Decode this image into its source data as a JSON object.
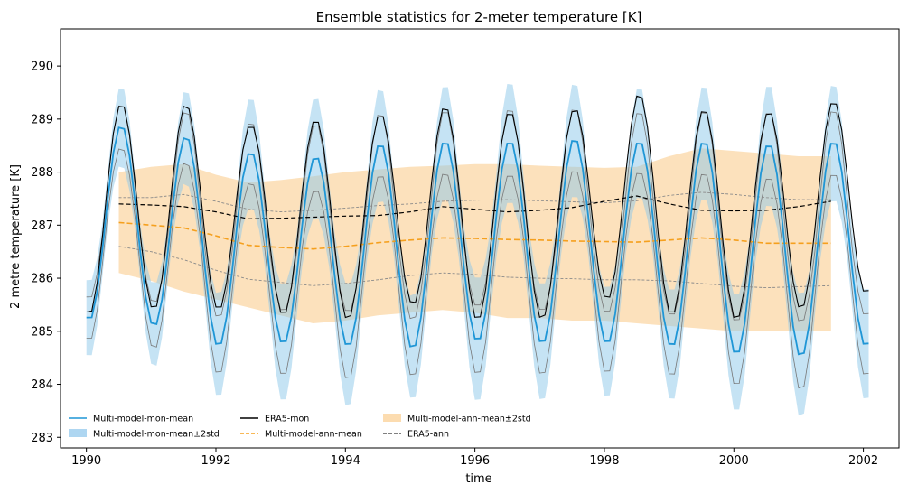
{
  "chart_data": {
    "type": "line",
    "title": "Ensemble statistics for 2-meter temperature [K]",
    "xlabel": "time",
    "ylabel": "2 metre temperature [K]",
    "xlim": [
      1989.6,
      2002.55
    ],
    "ylim": [
      282.8,
      290.7
    ],
    "grid": false,
    "legend_placement": "lower-left",
    "xticks": [
      1990,
      1992,
      1994,
      1996,
      1998,
      2000,
      2002
    ],
    "yticks": [
      283,
      284,
      285,
      286,
      287,
      288,
      289,
      290
    ],
    "monthly": {
      "start": 1990.0,
      "step": 0.08333,
      "min_month_offset": 0.04,
      "mean_amplitude": [
        1.87,
        1.87,
        1.88,
        1.86,
        1.85,
        1.92,
        1.94,
        1.95,
        1.88,
        1.9,
        1.97,
        1.95,
        1.9
      ],
      "mean_center": [
        287.05,
        286.97,
        286.85,
        286.62,
        286.55,
        286.65,
        286.75,
        286.73,
        286.7,
        286.68,
        286.72,
        286.66,
        286.66
      ],
      "mean_peaks": [
        288.9,
        288.7,
        288.4,
        288.3,
        288.55,
        288.6,
        288.6,
        288.65,
        288.6,
        288.6,
        288.55,
        288.6
      ],
      "mean_troughs": [
        285.2,
        285.1,
        284.7,
        284.75,
        284.7,
        284.65,
        284.8,
        284.75,
        284.75,
        284.7,
        284.55,
        284.5,
        284.7
      ],
      "era5_peaks": [
        289.3,
        289.3,
        288.9,
        289.0,
        289.1,
        289.25,
        289.15,
        289.2,
        289.5,
        289.2,
        289.15,
        289.35
      ],
      "era5_troughs": [
        285.3,
        285.4,
        285.4,
        285.3,
        285.2,
        285.5,
        285.2,
        285.2,
        285.6,
        285.3,
        285.2,
        285.4,
        285.7
      ],
      "spread_halfwidth": [
        0.55,
        0.6,
        0.75,
        0.85,
        0.9,
        0.75,
        0.9,
        0.85,
        0.8,
        0.8,
        0.85,
        0.9,
        0.8
      ]
    },
    "series": [
      {
        "name": "Multi-model-mon-mean",
        "color": "#1f96d6",
        "style": "solid"
      },
      {
        "name": "Multi-model-mon-mean±2std",
        "color": "#aed6f1",
        "style": "band"
      },
      {
        "name": "ERA5-mon",
        "color": "#000000",
        "style": "solid"
      },
      {
        "name": "Multi-model-ann-mean",
        "color": "#f5a01e",
        "style": "dashed",
        "x": [
          1990.5,
          1991.0,
          1991.5,
          1992.0,
          1992.5,
          1993.0,
          1993.5,
          1994.0,
          1994.5,
          1995.0,
          1995.5,
          1996.0,
          1996.5,
          1997.0,
          1997.5,
          1998.0,
          1998.5,
          1999.0,
          1999.5,
          2000.0,
          2000.5,
          2001.0,
          2001.5
        ],
        "values": [
          287.05,
          287.0,
          286.95,
          286.8,
          286.62,
          286.58,
          286.55,
          286.6,
          286.67,
          286.72,
          286.76,
          286.75,
          286.73,
          286.72,
          286.7,
          286.69,
          286.68,
          286.72,
          286.76,
          286.72,
          286.66,
          286.66,
          286.66
        ]
      },
      {
        "name": "Multi-model-ann-mean±2std",
        "color": "#fcdcb0",
        "style": "band",
        "upper": [
          288.0,
          288.1,
          288.15,
          287.95,
          287.8,
          287.85,
          287.92,
          288.0,
          288.05,
          288.1,
          288.12,
          288.15,
          288.15,
          288.12,
          288.1,
          288.08,
          288.1,
          288.3,
          288.45,
          288.4,
          288.35,
          288.3,
          288.3
        ],
        "lower": [
          286.1,
          285.95,
          285.75,
          285.6,
          285.45,
          285.3,
          285.15,
          285.2,
          285.3,
          285.35,
          285.4,
          285.35,
          285.25,
          285.25,
          285.2,
          285.2,
          285.15,
          285.1,
          285.05,
          285.0,
          285.0,
          285.0,
          285.0
        ]
      },
      {
        "name": "ERA5-ann",
        "color": "#000000",
        "style": "dashed",
        "values": [
          287.4,
          287.38,
          287.35,
          287.25,
          287.12,
          287.13,
          287.15,
          287.17,
          287.18,
          287.25,
          287.35,
          287.3,
          287.25,
          287.28,
          287.33,
          287.45,
          287.55,
          287.4,
          287.28,
          287.27,
          287.28,
          287.35,
          287.45
        ]
      },
      {
        "name": "",
        "color": "#8a8a8a",
        "style": "thin-dashed",
        "upper_values": [
          287.52,
          287.52,
          287.58,
          287.45,
          287.3,
          287.25,
          287.28,
          287.32,
          287.37,
          287.4,
          287.45,
          287.47,
          287.48,
          287.46,
          287.44,
          287.42,
          287.46,
          287.56,
          287.62,
          287.58,
          287.52,
          287.48,
          287.48
        ],
        "lower_values": [
          286.6,
          286.5,
          286.35,
          286.15,
          285.98,
          285.92,
          285.86,
          285.9,
          285.97,
          286.05,
          286.1,
          286.07,
          286.02,
          286.0,
          285.99,
          285.97,
          285.97,
          285.95,
          285.9,
          285.85,
          285.82,
          285.84,
          285.86
        ]
      }
    ]
  }
}
